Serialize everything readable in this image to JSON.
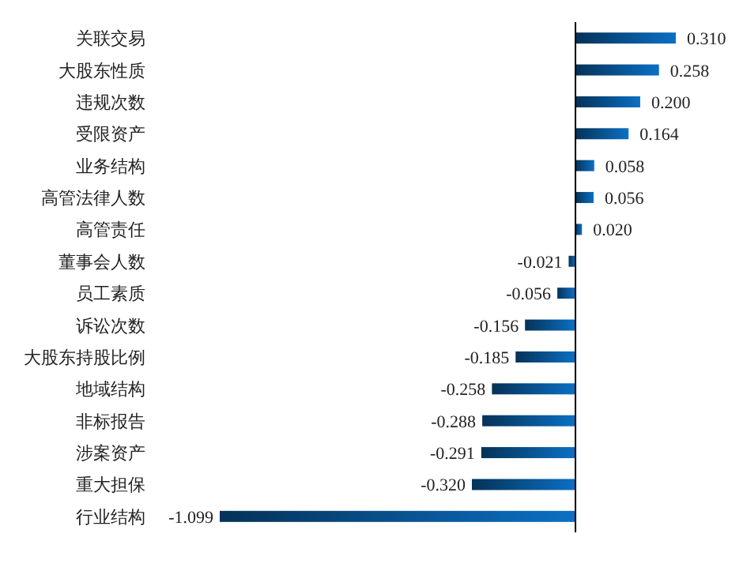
{
  "chart_data": {
    "type": "bar",
    "orientation": "horizontal",
    "color": "#0b70c4",
    "categories": [
      "关联交易",
      "大股东性质",
      "违规次数",
      "受限资产",
      "业务结构",
      "高管法律人数",
      "高管责任",
      "董事会人数",
      "员工素质",
      "诉讼次数",
      "大股东持股比例",
      "地域结构",
      "非标报告",
      "涉案资产",
      "重大担保",
      "行业结构"
    ],
    "values": [
      0.31,
      0.258,
      0.2,
      0.164,
      0.058,
      0.056,
      0.02,
      -0.021,
      -0.056,
      -0.156,
      -0.185,
      -0.258,
      -0.288,
      -0.291,
      -0.32,
      -1.099
    ],
    "value_labels": [
      "0.310",
      "0.258",
      "0.200",
      "0.164",
      "0.058",
      "0.056",
      "0.020",
      "-0.021",
      "-0.056",
      "-0.156",
      "-0.185",
      "-0.258",
      "-0.288",
      "-0.291",
      "-0.320",
      "-1.099"
    ]
  }
}
